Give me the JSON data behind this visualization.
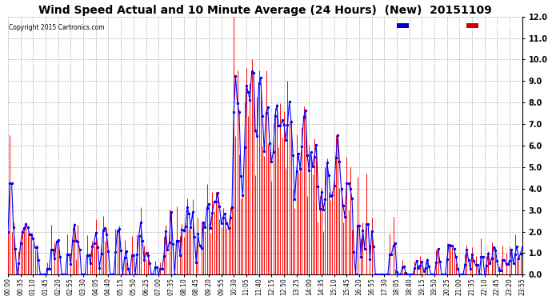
{
  "title": "Wind Speed Actual and 10 Minute Average (24 Hours)  (New)  20151109",
  "copyright": "Copyright 2015 Cartronics.com",
  "ylim": [
    0.0,
    12.0
  ],
  "yticks": [
    0.0,
    1.0,
    2.0,
    3.0,
    4.0,
    5.0,
    6.0,
    7.0,
    8.0,
    9.0,
    10.0,
    11.0,
    12.0
  ],
  "wind_color": "#ff0000",
  "avg_color": "#0000ff",
  "bg_color": "#ffffff",
  "grid_color": "#b0b0b0",
  "title_fontsize": 10,
  "legend_avg_bg": "#0000cc",
  "legend_wind_bg": "#cc0000"
}
